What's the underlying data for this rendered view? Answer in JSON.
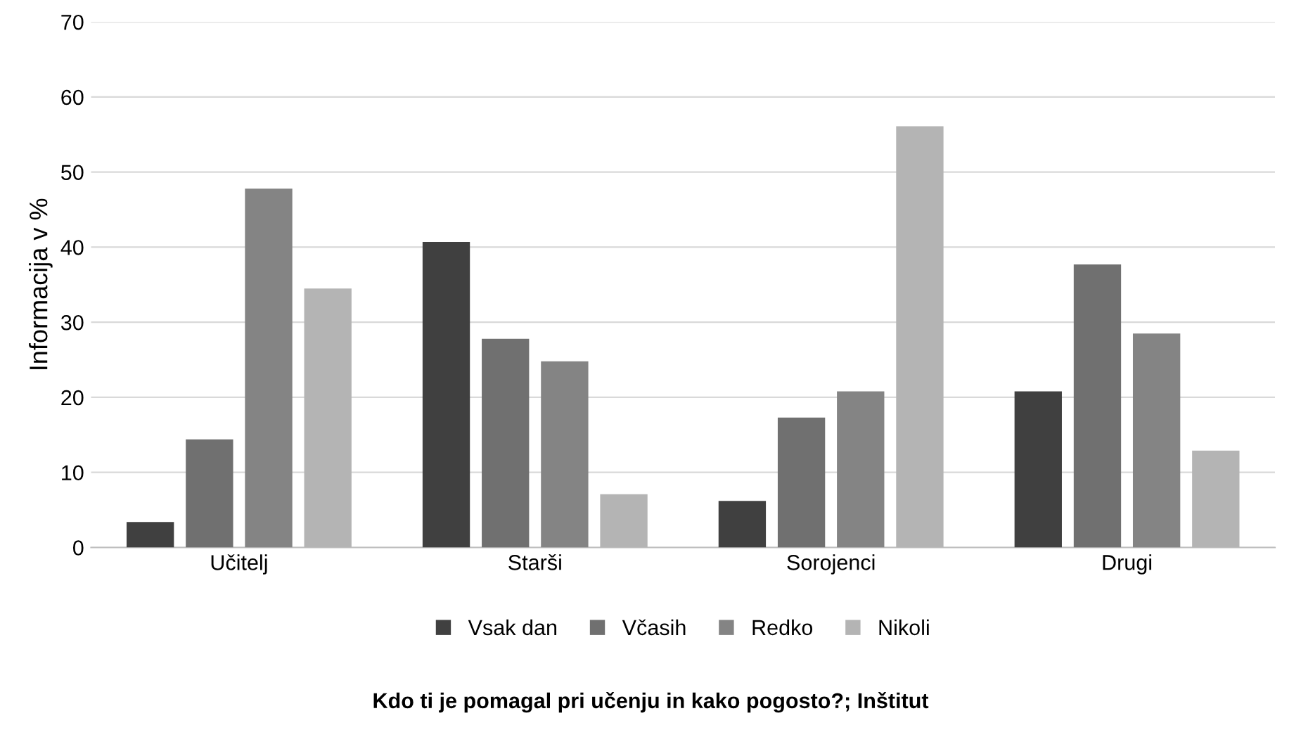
{
  "chart_data": {
    "type": "bar",
    "title": "Kdo ti je pomagal pri učenju in kako pogosto?; Inštitut",
    "ylabel": "Informacija v %",
    "categories": [
      "Učitelj",
      "Starši",
      "Sorojenci",
      "Drugi"
    ],
    "series": [
      {
        "name": "Vsak dan",
        "color": "#404040",
        "values": [
          3.4,
          40.7,
          6.2,
          20.8
        ]
      },
      {
        "name": "Včasih",
        "color": "#707070",
        "values": [
          14.4,
          27.8,
          17.3,
          37.7
        ]
      },
      {
        "name": "Redko",
        "color": "#848484",
        "values": [
          47.8,
          24.8,
          20.8,
          28.5
        ]
      },
      {
        "name": "Nikoli",
        "color": "#b4b4b4",
        "values": [
          34.5,
          7.1,
          56.1,
          12.9
        ]
      }
    ],
    "ylim": [
      0,
      70
    ],
    "yticks": [
      0,
      10,
      20,
      30,
      40,
      50,
      60,
      70
    ],
    "grid": "y",
    "legend": "bottom"
  }
}
